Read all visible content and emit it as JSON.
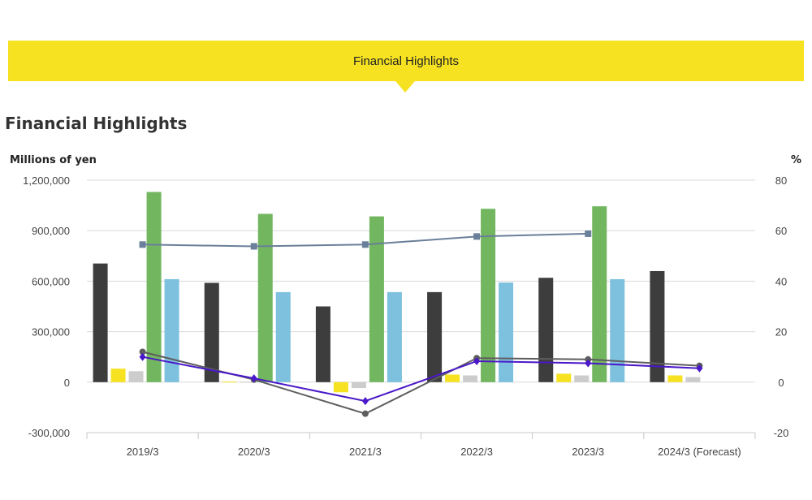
{
  "banner": {
    "title": "Financial Highlights"
  },
  "section": {
    "title": "Financial Highlights"
  },
  "chart_data": {
    "type": "bar",
    "categories": [
      "2019/3",
      "2020/3",
      "2021/3",
      "2022/3",
      "2023/3",
      "2024/3 (Forecast)"
    ],
    "left_axis": {
      "label": "Millions of yen",
      "ylim": [
        -300000,
        1200000
      ],
      "ticks": [
        -300000,
        0,
        300000,
        600000,
        900000,
        1200000
      ],
      "tick_labels": [
        "-300,000",
        "0",
        "300,000",
        "600,000",
        "900,000",
        "1,200,000"
      ]
    },
    "right_axis": {
      "label": "%",
      "ylim": [
        -20,
        80
      ],
      "ticks": [
        -20,
        0,
        20,
        40,
        60,
        80
      ],
      "tick_labels": [
        "-20",
        "0",
        "20",
        "40",
        "60",
        "80"
      ]
    },
    "grid": true,
    "bar_series": [
      {
        "color": "#3d3d3d",
        "values": [
          705000,
          590000,
          450000,
          535000,
          620000,
          660000
        ]
      },
      {
        "color": "#f6e221",
        "values": [
          80000,
          3000,
          -60000,
          45000,
          50000,
          40000
        ]
      },
      {
        "color": "#cccccc",
        "values": [
          65000,
          2000,
          -35000,
          40000,
          40000,
          30000
        ]
      },
      {
        "color": "#72b65f",
        "values": [
          1130000,
          1000000,
          985000,
          1030000,
          1045000,
          null
        ]
      },
      {
        "color": "#7dc1de",
        "values": [
          612000,
          535000,
          535000,
          592000,
          612000,
          null
        ]
      }
    ],
    "line_series": [
      {
        "color": "#6a7f99",
        "marker": "square",
        "values": [
          54.5,
          53.8,
          54.5,
          57.7,
          58.8,
          null
        ]
      },
      {
        "color": "#5e5e5e",
        "marker": "circle",
        "values": [
          12,
          1,
          -12.5,
          9.5,
          9,
          6.5
        ]
      },
      {
        "color": "#4a18c8",
        "marker": "diamond",
        "values": [
          10,
          1.5,
          -7.5,
          8.3,
          7.5,
          5.5
        ]
      }
    ]
  }
}
